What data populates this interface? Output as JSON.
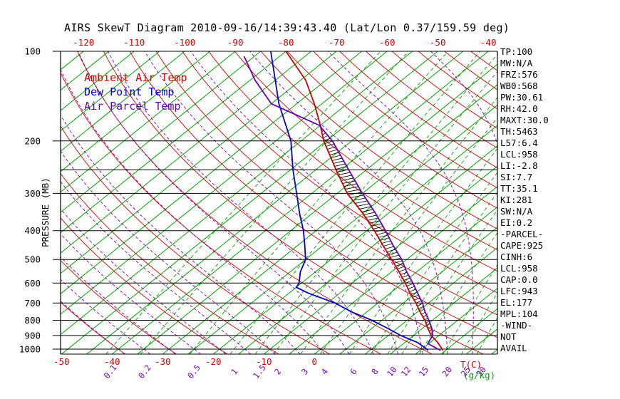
{
  "title": "AIRS SkewT Diagram 2010-09-16/14:39:43.40 (Lat/Lon 0.37/159.59 deg)",
  "colors": {
    "isotherm": "#00a300",
    "dry_adiabat": "#d40000",
    "moist_adiabat": "#8000c0",
    "pressure_line": "#000000",
    "temp_label": "#d40000",
    "mixing_label": "#8000c0"
  },
  "legend": {
    "items": [
      {
        "label": "Ambient Air Temp",
        "color": "#d40000"
      },
      {
        "label": "Dew Point Temp",
        "color": "#0000cc"
      },
      {
        "label": "Air Parcel Temp",
        "color": "#6600bb"
      }
    ]
  },
  "axes": {
    "pressure_label": "PRESSURE (MB)",
    "pressure_ticks": [
      100,
      200,
      300,
      400,
      500,
      600,
      700,
      800,
      900,
      1000
    ],
    "pressure_lines": [
      100,
      200,
      250,
      300,
      400,
      500,
      600,
      700,
      800,
      900,
      1000
    ],
    "top_temp_ticks": [
      -120,
      -110,
      -100,
      -90,
      -80,
      -70,
      -60,
      -50,
      -40
    ],
    "bottom_temp_ticks": [
      -50,
      -40,
      -30,
      -20,
      -10,
      0
    ],
    "temp_unit_label": "T(C)",
    "mixing_unit_label": "(g/kg)"
  },
  "stats": {
    "lines": [
      "TP:100",
      "MW:N/A",
      "FRZ:576",
      "WB0:568",
      "PW:30.61",
      "RH:42.0",
      "MAXT:30.0",
      "TH:5463",
      "L57:6.4",
      "LCL:958",
      "LI:-2.8",
      "SI:7.7",
      "TT:35.1",
      "KI:281",
      "SW:N/A",
      "EI:0.2",
      "-PARCEL-",
      "CAPE:925",
      "CINH:6",
      "LCL:958",
      "CAP:0.0",
      "LFC:943",
      "EL:177",
      "MPL:104",
      "-WIND-",
      "NOT",
      "AVAIL"
    ]
  },
  "chart_data": {
    "type": "line",
    "diagram": "skew-t log-p sounding",
    "title": "AIRS SkewT Diagram 2010-09-16/14:39:43.40 (Lat/Lon 0.37/159.59 deg)",
    "xlabel": "T(C)",
    "ylabel": "PRESSURE (MB)",
    "pressure_range_mb": [
      100,
      1040
    ],
    "surface_temp_axis_range_c": [
      -50,
      40
    ],
    "series": [
      {
        "name": "Ambient Air Temp",
        "color": "#cc0000",
        "points": [
          [
            1010,
            24.5
          ],
          [
            1000,
            24.0
          ],
          [
            950,
            21.5
          ],
          [
            900,
            18.5
          ],
          [
            850,
            16.0
          ],
          [
            800,
            13.5
          ],
          [
            750,
            10.5
          ],
          [
            700,
            7.5
          ],
          [
            650,
            4.0
          ],
          [
            600,
            0.5
          ],
          [
            550,
            -3.5
          ],
          [
            500,
            -8.0
          ],
          [
            450,
            -13.0
          ],
          [
            400,
            -18.5
          ],
          [
            350,
            -25.0
          ],
          [
            300,
            -33.0
          ],
          [
            250,
            -41.0
          ],
          [
            200,
            -50.5
          ],
          [
            175,
            -55.5
          ],
          [
            150,
            -61.5
          ],
          [
            125,
            -69.0
          ],
          [
            100,
            -80.0
          ]
        ]
      },
      {
        "name": "Dew Point Temp",
        "color": "#0000cc",
        "points": [
          [
            1010,
            21.5
          ],
          [
            1000,
            21.0
          ],
          [
            950,
            17.5
          ],
          [
            900,
            12.5
          ],
          [
            850,
            8.0
          ],
          [
            800,
            3.0
          ],
          [
            750,
            -3.0
          ],
          [
            700,
            -8.5
          ],
          [
            650,
            -16.0
          ],
          [
            620,
            -20.0
          ],
          [
            600,
            -20.5
          ],
          [
            550,
            -23.0
          ],
          [
            500,
            -25.0
          ],
          [
            450,
            -28.5
          ],
          [
            400,
            -32.5
          ],
          [
            350,
            -37.5
          ],
          [
            300,
            -43.0
          ],
          [
            250,
            -49.5
          ],
          [
            200,
            -57.0
          ],
          [
            150,
            -68.5
          ],
          [
            100,
            -83.0
          ]
        ]
      },
      {
        "name": "Air Parcel Temp",
        "color": "#6600bb",
        "points": [
          [
            1010,
            24.0
          ],
          [
            958,
            19.8
          ],
          [
            900,
            18.8
          ],
          [
            850,
            16.8
          ],
          [
            800,
            14.3
          ],
          [
            750,
            11.5
          ],
          [
            700,
            8.8
          ],
          [
            650,
            5.5
          ],
          [
            600,
            2.0
          ],
          [
            550,
            -2.0
          ],
          [
            500,
            -6.0
          ],
          [
            450,
            -11.0
          ],
          [
            400,
            -16.3
          ],
          [
            350,
            -22.5
          ],
          [
            300,
            -30.0
          ],
          [
            250,
            -38.5
          ],
          [
            200,
            -48.8
          ],
          [
            177,
            -55.3
          ],
          [
            150,
            -70.0
          ],
          [
            125,
            -79.0
          ],
          [
            104,
            -87.0
          ]
        ]
      }
    ],
    "background_lines": {
      "isotherms_c": {
        "from": -130,
        "to": 45,
        "step": 5
      },
      "dry_adiabats_c": {
        "from": -40,
        "to": 200,
        "step": 10
      },
      "moist_adiabats_c": {
        "from": -40,
        "to": 40,
        "step": 5
      },
      "mixing_ratio_g_kg": [
        0.1,
        0.2,
        0.5,
        1,
        1.5,
        2,
        3,
        4,
        6,
        8,
        10,
        12,
        15,
        20,
        25,
        30
      ]
    },
    "hatched_region": {
      "between": [
        "Ambient Air Temp",
        "Air Parcel Temp"
      ],
      "p_bottom": 945,
      "p_top": 178,
      "meaning": "CAPE area"
    }
  }
}
